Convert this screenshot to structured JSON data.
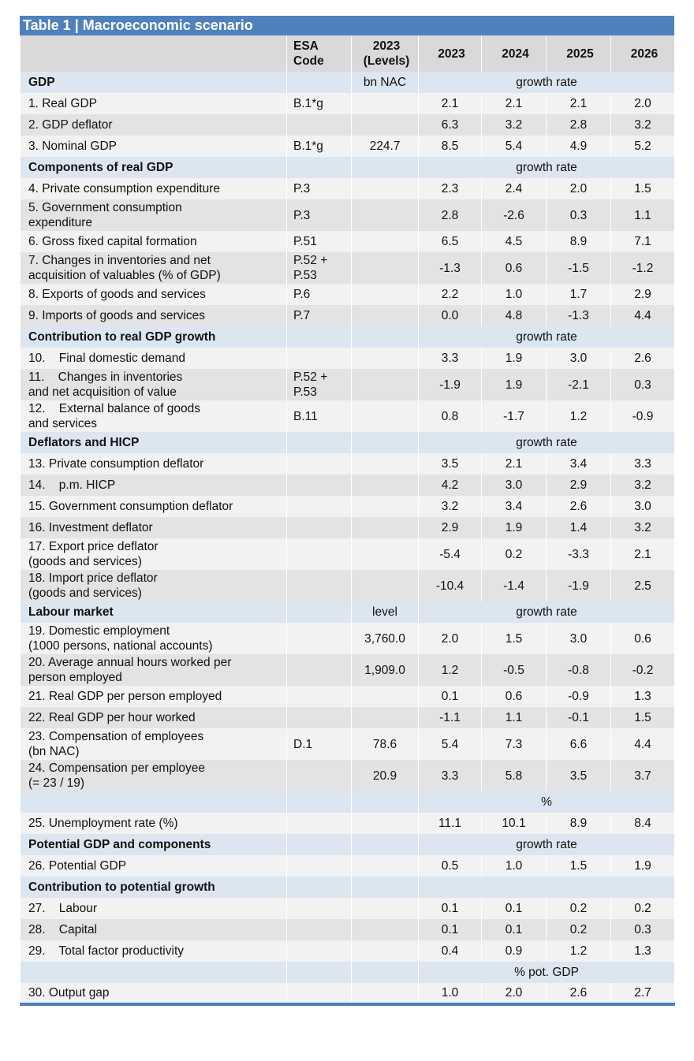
{
  "title": "Table 1 | Macroeconomic scenario",
  "header": {
    "esa": "ESA\nCode",
    "level": "2023\n(Levels)",
    "years": [
      "2023",
      "2024",
      "2025",
      "2026"
    ]
  },
  "rows": [
    {
      "heading": "GDP",
      "level": "bn NAC",
      "unit": "growth rate"
    },
    {
      "label": "1. Real GDP",
      "esa": "B.1*g",
      "values": [
        "2.1",
        "2.1",
        "2.1",
        "2.0"
      ]
    },
    {
      "label": "2. GDP deflator",
      "values": [
        "6.3",
        "3.2",
        "2.8",
        "3.2"
      ]
    },
    {
      "label": "3. Nominal GDP",
      "esa": "B.1*g",
      "level": "224.7",
      "values": [
        "8.5",
        "5.4",
        "4.9",
        "5.2"
      ]
    },
    {
      "heading": "Components of real GDP",
      "unit": "growth rate"
    },
    {
      "label": "4. Private consumption expenditure",
      "esa": "P.3",
      "values": [
        "2.3",
        "2.4",
        "2.0",
        "1.5"
      ]
    },
    {
      "label": "5. Government consumption\nexpenditure",
      "esa": "P.3",
      "values": [
        "2.8",
        "-2.6",
        "0.3",
        "1.1"
      ]
    },
    {
      "label": "6. Gross fixed capital formation",
      "esa": "P.51",
      "values": [
        "6.5",
        "4.5",
        "8.9",
        "7.1"
      ]
    },
    {
      "label": "7. Changes in inventories and net\nacquisition of valuables (% of GDP)",
      "esa": "P.52 +\nP.53",
      "values": [
        "-1.3",
        "0.6",
        "-1.5",
        "-1.2"
      ]
    },
    {
      "label": "8. Exports of goods and services",
      "esa": "P.6",
      "values": [
        "2.2",
        "1.0",
        "1.7",
        "2.9"
      ]
    },
    {
      "label": "9. Imports of goods and services",
      "esa": "P.7",
      "values": [
        "0.0",
        "4.8",
        "-1.3",
        "4.4"
      ]
    },
    {
      "heading": "Contribution to real GDP growth",
      "unit": "growth rate"
    },
    {
      "label": "10.    Final domestic demand",
      "values": [
        "3.3",
        "1.9",
        "3.0",
        "2.6"
      ]
    },
    {
      "label": "11.    Changes in inventories\nand net acquisition of value",
      "esa": "P.52 +\nP.53",
      "values": [
        "-1.9",
        "1.9",
        "-2.1",
        "0.3"
      ]
    },
    {
      "label": "12.    External balance of goods\nand services",
      "esa": "B.11",
      "values": [
        "0.8",
        "-1.7",
        "1.2",
        "-0.9"
      ]
    },
    {
      "heading": "Deflators and HICP",
      "unit": "growth rate"
    },
    {
      "label": "13. Private consumption deflator",
      "values": [
        "3.5",
        "2.1",
        "3.4",
        "3.3"
      ]
    },
    {
      "label": "14.    p.m. HICP",
      "values": [
        "4.2",
        "3.0",
        "2.9",
        "3.2"
      ]
    },
    {
      "label": "15. Government consumption deflator",
      "values": [
        "3.2",
        "3.4",
        "2.6",
        "3.0"
      ]
    },
    {
      "label": "16. Investment deflator",
      "values": [
        "2.9",
        "1.9",
        "1.4",
        "3.2"
      ]
    },
    {
      "label": "17. Export price deflator\n(goods and services)",
      "values": [
        "-5.4",
        "0.2",
        "-3.3",
        "2.1"
      ]
    },
    {
      "label": "18. Import price deflator\n(goods and services)",
      "values": [
        "-10.4",
        "-1.4",
        "-1.9",
        "2.5"
      ]
    },
    {
      "heading": "Labour market",
      "level": "level",
      "unit": "growth rate"
    },
    {
      "label": "19. Domestic employment\n(1000 persons, national accounts)",
      "level": "3,760.0",
      "values": [
        "2.0",
        "1.5",
        "3.0",
        "0.6"
      ]
    },
    {
      "label": "20. Average annual hours worked per\nperson employed",
      "level": "1,909.0",
      "values": [
        "1.2",
        "-0.5",
        "-0.8",
        "-0.2"
      ]
    },
    {
      "label": "21. Real GDP per person employed",
      "values": [
        "0.1",
        "0.6",
        "-0.9",
        "1.3"
      ]
    },
    {
      "label": "22. Real GDP per hour worked",
      "values": [
        "-1.1",
        "1.1",
        "-0.1",
        "1.5"
      ]
    },
    {
      "label": "23. Compensation of employees\n(bn NAC)",
      "esa": "D.1",
      "level": "78.6",
      "values": [
        "5.4",
        "7.3",
        "6.6",
        "4.4"
      ]
    },
    {
      "label": "24. Compensation per employee\n(= 23 / 19)",
      "level": "20.9",
      "values": [
        "3.3",
        "5.8",
        "3.5",
        "3.7"
      ]
    },
    {
      "unit": "%"
    },
    {
      "label": "25. Unemployment rate (%)",
      "values": [
        "11.1",
        "10.1",
        "8.9",
        "8.4"
      ]
    },
    {
      "heading": "Potential GDP and components",
      "unit": "growth rate"
    },
    {
      "label": "26. Potential GDP",
      "values": [
        "0.5",
        "1.0",
        "1.5",
        "1.9"
      ]
    },
    {
      "heading": "Contribution to potential growth"
    },
    {
      "label": "27.    Labour",
      "values": [
        "0.1",
        "0.1",
        "0.2",
        "0.2"
      ]
    },
    {
      "label": "28.    Capital",
      "values": [
        "0.1",
        "0.1",
        "0.2",
        "0.3"
      ]
    },
    {
      "label": "29.    Total factor productivity",
      "values": [
        "0.4",
        "0.9",
        "1.2",
        "1.3"
      ]
    },
    {
      "unit": "% pot. GDP"
    },
    {
      "label": "30. Output gap",
      "values": [
        "1.0",
        "2.0",
        "2.6",
        "2.7"
      ]
    }
  ]
}
